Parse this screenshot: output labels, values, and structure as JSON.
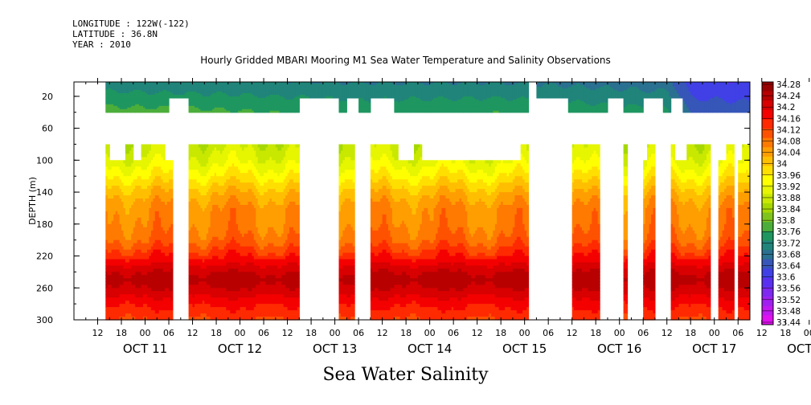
{
  "header": {
    "longitude": "LONGITUDE : 122W(-122)",
    "latitude": "LATITUDE : 36.8N",
    "year": "YEAR : 2010"
  },
  "title": "Hourly Gridded MBARI Mooring M1 Sea Water Temperature and Salinity Observations",
  "footer_title": "Sea Water Salinity",
  "chart_data": {
    "type": "heatmap",
    "title": "Hourly Gridded MBARI Mooring M1 Sea Water Temperature and Salinity Observations",
    "xlabel": "",
    "ylabel": "DEPTH (m)",
    "x_start": "OCT 11 06:00",
    "x_end": "OCT 18 09:00",
    "x_hour_ticks": [
      "12",
      "18",
      "00",
      "06",
      "12",
      "18",
      "00",
      "06",
      "12",
      "18",
      "00",
      "06",
      "12",
      "18",
      "00",
      "06",
      "12",
      "18",
      "00",
      "06",
      "12",
      "18",
      "00",
      "06",
      "12",
      "18",
      "00",
      "06",
      "12",
      "18",
      "00",
      "06"
    ],
    "x_day_labels": [
      "OCT 11",
      "OCT 12",
      "OCT 13",
      "OCT 14",
      "OCT 15",
      "OCT 16",
      "OCT 17",
      "OCT 18"
    ],
    "y_ticks": [
      20,
      60,
      100,
      140,
      180,
      220,
      260,
      300
    ],
    "ylim": [
      300,
      2
    ],
    "colorbar_levels": [
      34.28,
      34.24,
      34.2,
      34.16,
      34.12,
      34.08,
      34.04,
      34.0,
      33.96,
      33.92,
      33.88,
      33.84,
      33.8,
      33.76,
      33.72,
      33.68,
      33.64,
      33.6,
      33.56,
      33.52,
      33.48,
      33.44
    ],
    "colorbar_colors": [
      "#990000",
      "#b80000",
      "#d80000",
      "#f40000",
      "#ff2a00",
      "#ff5200",
      "#ff7a00",
      "#ff9e00",
      "#ffbf00",
      "#ffdf00",
      "#ffff00",
      "#e6f500",
      "#c8e800",
      "#a6d800",
      "#7ec41c",
      "#4cae3a",
      "#1f9660",
      "#20847a",
      "#2a7090",
      "#3656b8",
      "#4040e6",
      "#5a30f0",
      "#7e28f0",
      "#a020f0",
      "#c018f0",
      "#e010f0"
    ],
    "series": [
      {
        "name": "surface_layer_depth_range_m",
        "values": [
          2,
          40
        ]
      },
      {
        "name": "deep_layer_depth_range_m",
        "values": [
          80,
          300
        ]
      }
    ],
    "surface_salinity": {
      "hours": [
        0,
        36,
        72,
        108,
        150,
        156,
        175,
        210
      ],
      "near_surface": [
        33.62,
        33.61,
        33.6,
        33.6,
        33.58,
        33.49,
        33.48,
        33.52
      ],
      "at_40m": [
        33.7,
        33.69,
        33.67,
        33.68,
        33.65,
        33.55,
        33.54,
        33.56
      ]
    },
    "deep_profile": {
      "depths": [
        80,
        100,
        120,
        140,
        160,
        180,
        200,
        220,
        240,
        250,
        260,
        280,
        300
      ],
      "salinity": [
        33.82,
        33.86,
        33.92,
        33.99,
        34.04,
        34.05,
        34.08,
        34.15,
        34.24,
        34.26,
        34.24,
        34.17,
        34.12
      ]
    }
  }
}
